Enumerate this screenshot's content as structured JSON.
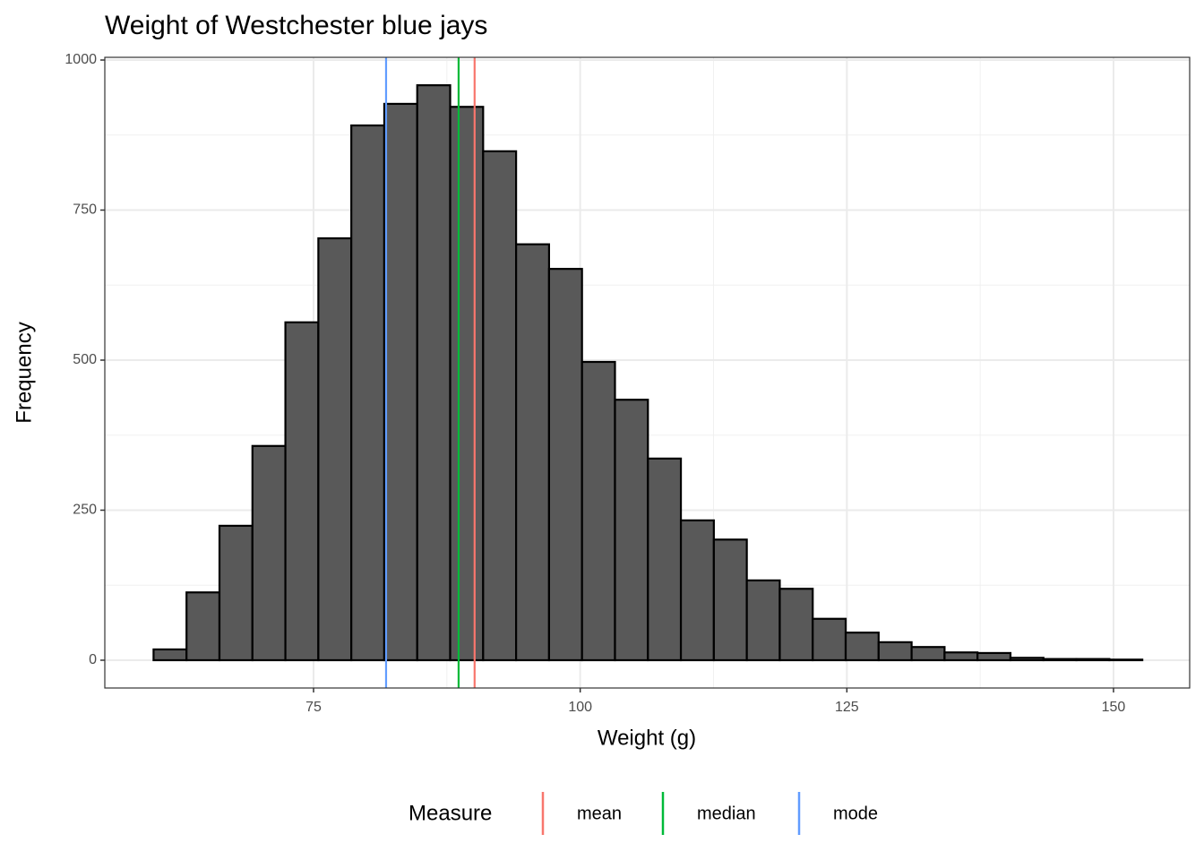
{
  "chart_data": {
    "type": "histogram",
    "title": "Weight of Westchester blue jays",
    "x_label": "Weight (g)",
    "y_label": "Frequency",
    "bins": [
      60,
      63.09,
      66.18,
      69.27,
      72.36,
      75.45,
      78.54,
      81.63,
      84.72,
      87.81,
      90.9,
      93.99,
      97.08,
      100.17,
      103.26,
      106.35,
      109.44,
      112.53,
      115.62,
      118.71,
      121.8,
      124.89,
      127.98,
      131.07,
      134.16,
      137.25,
      140.34,
      143.43,
      146.52,
      149.61,
      152.7
    ],
    "values": [
      18,
      113,
      224,
      357,
      563,
      703,
      891,
      927,
      958,
      922,
      848,
      693,
      652,
      497,
      434,
      336,
      233,
      201,
      133,
      119,
      69,
      46,
      30,
      22,
      13,
      12,
      4,
      2,
      2,
      1
    ],
    "color": "#595959",
    "edge_color": "#000000",
    "xlim": [
      55.43,
      157.14
    ],
    "xticks": [
      75,
      100,
      125,
      150
    ],
    "ylim": [
      -46.3,
      1004.5
    ],
    "yticks": [
      0,
      250,
      500,
      750,
      1000
    ],
    "grid": true,
    "legend_title": "Measure",
    "vlines": [
      {
        "name": "mean",
        "color": "#F8766D",
        "value": 90.1
      },
      {
        "name": "median",
        "color": "#00BA38",
        "value": 88.6
      },
      {
        "name": "mode",
        "color": "#619CFF",
        "value": 81.8
      }
    ]
  }
}
